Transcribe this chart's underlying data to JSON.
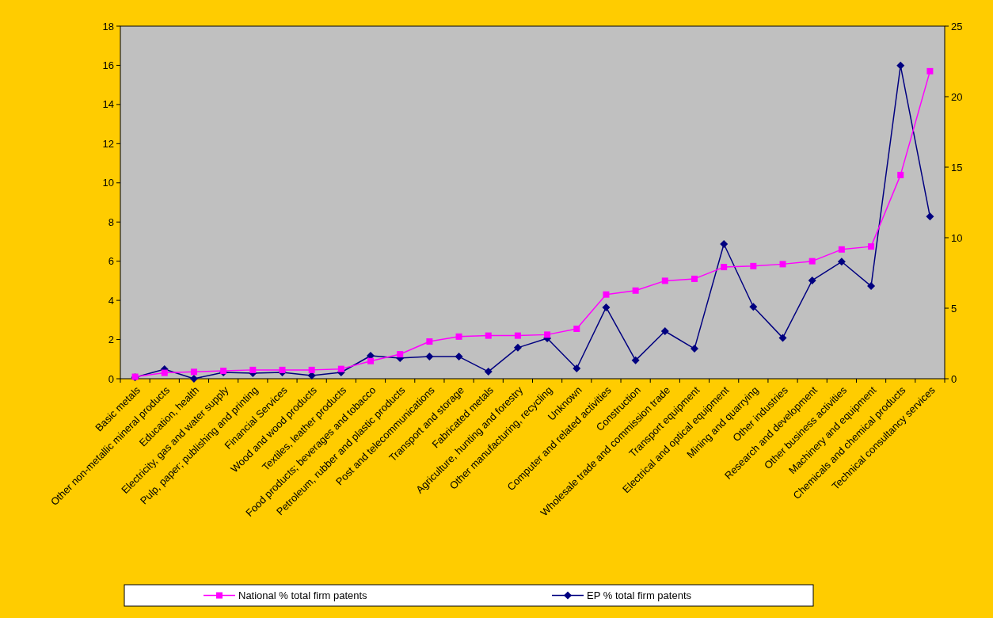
{
  "chart_data": {
    "type": "line",
    "categories": [
      "Basic metals",
      "Other non-metallic mineral products",
      "Education, health",
      "Electricity, gas and water supply",
      "Pulp, paper; publishing and printing",
      "Financial Services",
      "Wood and wood products",
      "Textiles, leather products",
      "Food products; beverages and tobacco",
      "Petroleum, rubber and plastic products",
      "Post and telecommunications",
      "Transport and storage",
      "Fabricated metals",
      "Agriculture, hunting and forestry",
      "Other manufacturing, recycling",
      "Unknown",
      "Computer and related activities",
      "Construction",
      "Wholesale trade and commission trade",
      "Transport equipment",
      "Electrical and optical equipment",
      "Mining and quarrying",
      "Other industries",
      "Research and development",
      "Other business activities",
      "Machinery and equipment",
      "Chemicals and chemical products",
      "Technical consultancy services"
    ],
    "series": [
      {
        "name": "National % total firm patents",
        "color": "#ff00ff",
        "marker": "square",
        "values": [
          0.1,
          0.3,
          0.35,
          0.4,
          0.45,
          0.45,
          0.45,
          0.5,
          0.9,
          1.25,
          1.9,
          2.15,
          2.2,
          2.2,
          2.25,
          2.55,
          4.3,
          4.5,
          5.0,
          5.1,
          5.7,
          5.75,
          5.85,
          6.0,
          6.6,
          6.75,
          10.4,
          15.7
        ]
      },
      {
        "name": "EP % total firm patents",
        "color": "#000080",
        "marker": "diamond",
        "axis": "y2",
        "values": [
          0.1,
          0.67,
          0,
          0.45,
          0.4,
          0.45,
          0.22,
          0.45,
          1.63,
          1.46,
          1.57,
          1.57,
          0.5,
          2.2,
          2.87,
          0.73,
          5.06,
          1.3,
          3.37,
          2.13,
          9.55,
          5.1,
          2.9,
          6.97,
          8.3,
          6.57,
          22.2,
          11.5
        ]
      }
    ],
    "ylim": [
      0,
      18
    ],
    "yticks": [
      0,
      2,
      4,
      6,
      8,
      10,
      12,
      14,
      16,
      18
    ],
    "y2lim": [
      0,
      25
    ],
    "y2ticks": [
      0,
      5,
      10,
      15,
      20,
      25
    ],
    "grid": false,
    "legend": "bottom"
  }
}
